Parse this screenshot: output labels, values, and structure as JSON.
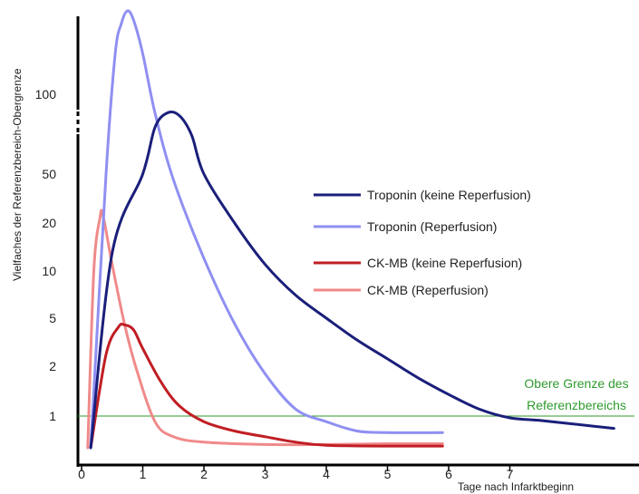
{
  "chart_data": {
    "type": "line",
    "ylabel": "Vielfaches der Referenzbereich-Obergrenze",
    "xlabel": "Tage nach Infarktbeginn",
    "x_ticks": [
      "0",
      "1",
      "2",
      "3",
      "4",
      "5",
      "6",
      "7"
    ],
    "y_ticks": [
      "1",
      "2",
      "5",
      "10",
      "20",
      "50",
      "100"
    ],
    "y_scale": "categorical-log",
    "xlim": [
      0,
      8.7
    ],
    "legend_position": "center-right",
    "reference_line": {
      "label_lines": [
        "Obere Grenze des",
        "Referenzbereichs"
      ],
      "value": 1,
      "color": "#2e9a2e"
    },
    "series": [
      {
        "name": "Troponin (keine Reperfusion)",
        "color": "#1a1f7a",
        "points": [
          [
            0.15,
            0.4
          ],
          [
            0.5,
            13
          ],
          [
            1.0,
            50
          ],
          [
            1.2,
            75
          ],
          [
            1.4,
            85
          ],
          [
            1.6,
            83
          ],
          [
            1.8,
            70
          ],
          [
            2.0,
            50
          ],
          [
            2.5,
            20
          ],
          [
            3.0,
            11
          ],
          [
            3.5,
            7
          ],
          [
            4.0,
            5
          ],
          [
            4.5,
            3.3
          ],
          [
            5.0,
            2.3
          ],
          [
            5.5,
            1.7
          ],
          [
            6.0,
            1.35
          ],
          [
            6.5,
            1.1
          ],
          [
            7.0,
            0.95
          ],
          [
            7.5,
            0.88
          ],
          [
            8.0,
            0.8
          ],
          [
            8.7,
            0.7
          ]
        ]
      },
      {
        "name": "Troponin (Reperfusion)",
        "color": "#8f8ff2",
        "points": [
          [
            0.15,
            0.4
          ],
          [
            0.4,
            50
          ],
          [
            0.55,
            140
          ],
          [
            0.65,
            180
          ],
          [
            0.75,
            200
          ],
          [
            0.85,
            185
          ],
          [
            1.0,
            140
          ],
          [
            1.2,
            85
          ],
          [
            1.5,
            45
          ],
          [
            2.0,
            12
          ],
          [
            2.5,
            4.5
          ],
          [
            3.0,
            1.8
          ],
          [
            3.5,
            1.1
          ],
          [
            4.0,
            0.85
          ],
          [
            4.5,
            0.65
          ],
          [
            5.0,
            0.62
          ],
          [
            5.9,
            0.62
          ]
        ]
      },
      {
        "name": "CK-MB (keine Reperfusion)",
        "color": "#c01e24",
        "points": [
          [
            0.15,
            0.4
          ],
          [
            0.4,
            2.5
          ],
          [
            0.6,
            4.2
          ],
          [
            0.7,
            4.4
          ],
          [
            0.85,
            4
          ],
          [
            1.0,
            2.8
          ],
          [
            1.3,
            1.6
          ],
          [
            1.6,
            1.15
          ],
          [
            2.0,
            0.85
          ],
          [
            2.5,
            0.65
          ],
          [
            3.0,
            0.55
          ],
          [
            3.5,
            0.47
          ],
          [
            4.0,
            0.43
          ],
          [
            5.0,
            0.42
          ],
          [
            5.9,
            0.42
          ]
        ]
      },
      {
        "name": "CK-MB (Reperfusion)",
        "color": "#f08a8a",
        "points": [
          [
            0.1,
            0.4
          ],
          [
            0.2,
            10
          ],
          [
            0.3,
            22
          ],
          [
            0.35,
            23
          ],
          [
            0.5,
            11
          ],
          [
            0.7,
            4.5
          ],
          [
            0.9,
            1.9
          ],
          [
            1.2,
            0.85
          ],
          [
            1.5,
            0.55
          ],
          [
            2.0,
            0.47
          ],
          [
            3.0,
            0.44
          ],
          [
            4.0,
            0.44
          ],
          [
            5.0,
            0.45
          ],
          [
            5.9,
            0.45
          ]
        ]
      }
    ]
  }
}
